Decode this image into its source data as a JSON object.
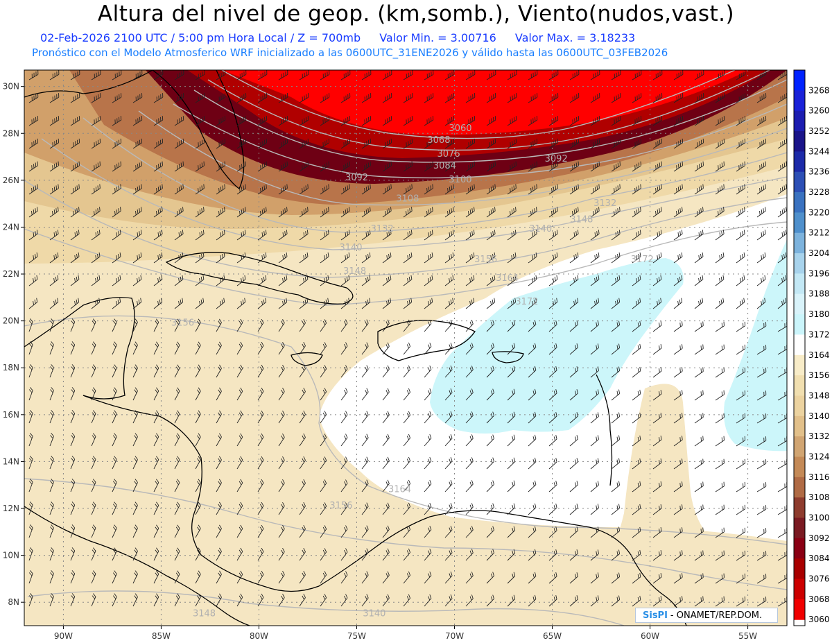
{
  "title": "Altura del nivel de geop. (km,somb.), Viento(nudos,vast.)",
  "subtitle_line1": {
    "datetime": "02-Feb-2026  2100 UTC / 5:00 pm Hora Local / Z = 700mb",
    "vmin": "Valor Min. = 3.00716",
    "vmax": "Valor Max. = 3.18233"
  },
  "subtitle_line2": "Pronóstico con el Modelo Atmosferico WRF inicializado a las 0600UTC_31ENE2026 y válido hasta las  0600UTC_03FEB2026",
  "credit": {
    "logo": "SisPI",
    "text": "- ONAMET/REP.DOM."
  },
  "colors": {
    "red": "#ff0000",
    "darkred": "#6e0014",
    "brown": "#c48a4e",
    "tan": "#f5e6c2",
    "white": "#ffffff",
    "cyan": "#ccf6fa",
    "barb": "#222222",
    "contour": "#a9a9a9"
  },
  "map": {
    "lon_range": [
      -92,
      -53
    ],
    "lat_range": [
      7,
      30.7
    ],
    "lon_ticks": [
      {
        "v": -90,
        "label": "90W"
      },
      {
        "v": -85,
        "label": "85W"
      },
      {
        "v": -80,
        "label": "80W"
      },
      {
        "v": -75,
        "label": "75W"
      },
      {
        "v": -70,
        "label": "70W"
      },
      {
        "v": -65,
        "label": "65W"
      },
      {
        "v": -60,
        "label": "60W"
      },
      {
        "v": -55,
        "label": "55W"
      }
    ],
    "lat_ticks": [
      {
        "v": 30,
        "label": "30N"
      },
      {
        "v": 28,
        "label": "28N"
      },
      {
        "v": 26,
        "label": "26N"
      },
      {
        "v": 24,
        "label": "24N"
      },
      {
        "v": 22,
        "label": "22N"
      },
      {
        "v": 20,
        "label": "20N"
      },
      {
        "v": 18,
        "label": "18N"
      },
      {
        "v": 16,
        "label": "16N"
      },
      {
        "v": 14,
        "label": "14N"
      },
      {
        "v": 12,
        "label": "12N"
      },
      {
        "v": 10,
        "label": "10N"
      },
      {
        "v": 8,
        "label": "8N"
      }
    ],
    "contour_labels": [
      {
        "text": "3060",
        "lon": -69.7,
        "lat": 28.1
      },
      {
        "text": "3068",
        "lon": -70.8,
        "lat": 27.6
      },
      {
        "text": "3076",
        "lon": -70.3,
        "lat": 27.0
      },
      {
        "text": "3084",
        "lon": -70.5,
        "lat": 26.5
      },
      {
        "text": "3092",
        "lon": -75.0,
        "lat": 26.0
      },
      {
        "text": "3092",
        "lon": -64.8,
        "lat": 26.8
      },
      {
        "text": "3100",
        "lon": -69.7,
        "lat": 25.9
      },
      {
        "text": "3108",
        "lon": -72.4,
        "lat": 25.1
      },
      {
        "text": "3132",
        "lon": -62.3,
        "lat": 24.9
      },
      {
        "text": "3148",
        "lon": -63.5,
        "lat": 24.2
      },
      {
        "text": "3140",
        "lon": -65.6,
        "lat": 23.8
      },
      {
        "text": "3132",
        "lon": -73.7,
        "lat": 23.8
      },
      {
        "text": "3140",
        "lon": -75.3,
        "lat": 23.0
      },
      {
        "text": "3148",
        "lon": -75.1,
        "lat": 22.0
      },
      {
        "text": "3156",
        "lon": -68.4,
        "lat": 22.5
      },
      {
        "text": "3164",
        "lon": -67.3,
        "lat": 21.7
      },
      {
        "text": "3172",
        "lon": -60.4,
        "lat": 22.5
      },
      {
        "text": "3172",
        "lon": -66.3,
        "lat": 20.7
      },
      {
        "text": "3156",
        "lon": -83.9,
        "lat": 19.8
      },
      {
        "text": "3164",
        "lon": -72.8,
        "lat": 12.7
      },
      {
        "text": "3156",
        "lon": -75.8,
        "lat": 12.0
      },
      {
        "text": "3148",
        "lon": -82.8,
        "lat": 7.4
      },
      {
        "text": "3140",
        "lon": -74.1,
        "lat": 7.4
      }
    ]
  },
  "colorbar": {
    "levels": [
      "3268",
      "3260",
      "3252",
      "3244",
      "3236",
      "3228",
      "3220",
      "3212",
      "3204",
      "3196",
      "3188",
      "3180",
      "3172",
      "3164",
      "3156",
      "3148",
      "3140",
      "3132",
      "3124",
      "3116",
      "3108",
      "3100",
      "3092",
      "3084",
      "3076",
      "3068",
      "3060"
    ],
    "colors": [
      "#0022ff",
      "#1a22d8",
      "#1c1db0",
      "#1a1489",
      "#1c2aa8",
      "#2c4fb5",
      "#3a72c0",
      "#4f90cc",
      "#7db3dd",
      "#a8d3ec",
      "#c3e8f5",
      "#d9f3fa",
      "#cbf5fb",
      "#ffffff",
      "#f8ecc8",
      "#f1dfb0",
      "#ecd3a0",
      "#e2c08a",
      "#d1a572",
      "#c48a57",
      "#b06b45",
      "#8e3c2e",
      "#7a1a22",
      "#8a0014",
      "#a80000",
      "#cc0000",
      "#f00000"
    ]
  }
}
